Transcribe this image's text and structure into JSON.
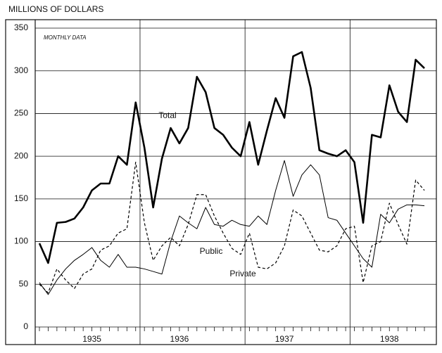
{
  "chart_data": {
    "type": "line",
    "ylabel": "MILLIONS OF DOLLARS",
    "annotation": "MONTHLY DATA",
    "categories": [
      null,
      null,
      null,
      null,
      null,
      null,
      "1935",
      null,
      null,
      null,
      null,
      null,
      null,
      null,
      null,
      null,
      "1936",
      null,
      null,
      null,
      null,
      null,
      null,
      null,
      null,
      null,
      null,
      null,
      "1937",
      null,
      null,
      null,
      null,
      null,
      null,
      null,
      null,
      null,
      null,
      null,
      "1938",
      null,
      null,
      null,
      null
    ],
    "series": [
      {
        "name": "Total",
        "color": "#000000",
        "width": 2.6,
        "dashed": false,
        "values": [
          98,
          75,
          122,
          123,
          127,
          140,
          160,
          168,
          168,
          200,
          190,
          263,
          210,
          140,
          197,
          233,
          215,
          233,
          293,
          275,
          233,
          225,
          210,
          200,
          240,
          190,
          230,
          268,
          245,
          317,
          322,
          280,
          207,
          203,
          200,
          207,
          193,
          122,
          225,
          222,
          283,
          252,
          240,
          313,
          303
        ]
      },
      {
        "name": "Private",
        "color": "#000000",
        "width": 1,
        "dashed": false,
        "values": [
          52,
          38,
          55,
          68,
          78,
          85,
          93,
          78,
          70,
          85,
          70,
          70,
          68,
          65,
          62,
          100,
          130,
          122,
          115,
          140,
          120,
          118,
          125,
          120,
          118,
          130,
          120,
          160,
          195,
          153,
          178,
          190,
          178,
          128,
          125,
          110,
          95,
          80,
          70,
          132,
          122,
          138,
          143,
          143,
          142
        ]
      },
      {
        "name": "Public",
        "color": "#000000",
        "width": 1.2,
        "dashed": true,
        "values": [
          50,
          40,
          68,
          55,
          45,
          62,
          68,
          90,
          95,
          110,
          115,
          193,
          122,
          78,
          95,
          105,
          95,
          120,
          155,
          155,
          130,
          110,
          92,
          85,
          110,
          70,
          68,
          75,
          95,
          137,
          130,
          110,
          90,
          88,
          95,
          115,
          118,
          52,
          95,
          100,
          145,
          120,
          97,
          172,
          160
        ]
      }
    ],
    "ylim": [
      0,
      350
    ],
    "yticks": [
      0,
      50,
      100,
      150,
      200,
      250,
      300,
      350
    ],
    "grid": true
  }
}
